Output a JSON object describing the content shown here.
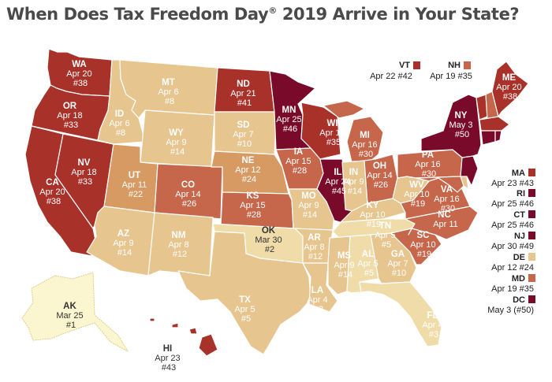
{
  "title": {
    "pre": "When Does Tax Freedom Day",
    "sup": "®",
    "post": " 2019 Arrive in Your State?"
  },
  "colors": {
    "darkest": "#7a0a2a",
    "dark": "#a8322a",
    "medium": "#c6664a",
    "mediumlight": "#d79a63",
    "light": "#e7c58e",
    "lighter": "#f0dca8",
    "lightest": "#fbf6cf"
  },
  "states": {
    "WA": {
      "name": "WA",
      "date": "Apr 20",
      "rank": "#38"
    },
    "OR": {
      "name": "OR",
      "date": "Apr 18",
      "rank": "#33"
    },
    "CA": {
      "name": "CA",
      "date": "Apr 20",
      "rank": "#38"
    },
    "NV": {
      "name": "NV",
      "date": "Apr 18",
      "rank": "#33"
    },
    "ID": {
      "name": "ID",
      "date": "Apr 6",
      "rank": "#8"
    },
    "MT": {
      "name": "MT",
      "date": "Apr 6",
      "rank": "#8"
    },
    "WY": {
      "name": "WY",
      "date": "Apr 9",
      "rank": "#14"
    },
    "UT": {
      "name": "UT",
      "date": "Apr 11",
      "rank": "#22"
    },
    "AZ": {
      "name": "AZ",
      "date": "Apr 9",
      "rank": "#14"
    },
    "CO": {
      "name": "CO",
      "date": "Apr 14",
      "rank": "#26"
    },
    "NM": {
      "name": "NM",
      "date": "Apr 8",
      "rank": "#12"
    },
    "ND": {
      "name": "ND",
      "date": "Apr 21",
      "rank": "#41"
    },
    "SD": {
      "name": "SD",
      "date": "Apr 7",
      "rank": "#10"
    },
    "NE": {
      "name": "NE",
      "date": "Apr 12",
      "rank": "#24"
    },
    "KS": {
      "name": "KS",
      "date": "Apr 15",
      "rank": "#28"
    },
    "OK": {
      "name": "OK",
      "date": "Mar 30",
      "rank": "#2"
    },
    "TX": {
      "name": "TX",
      "date": "Apr 5",
      "rank": "#5"
    },
    "MN": {
      "name": "MN",
      "date": "Apr 25",
      "rank": "#46"
    },
    "IA": {
      "name": "IA",
      "date": "Apr 15",
      "rank": "#28"
    },
    "MO": {
      "name": "MO",
      "date": "Apr 9",
      "rank": "#14"
    },
    "AR": {
      "name": "AR",
      "date": "Apr 8",
      "rank": "#12"
    },
    "LA": {
      "name": "LA",
      "date": "Apr 4",
      "rank": "#3"
    },
    "WI": {
      "name": "WI",
      "date": "Apr 19",
      "rank": "#35"
    },
    "IL": {
      "name": "IL",
      "date": "Apr 24",
      "rank": "#45"
    },
    "MI": {
      "name": "MI",
      "date": "Apr 16",
      "rank": "#30"
    },
    "IN": {
      "name": "IN",
      "date": "Apr 9",
      "rank": "#14"
    },
    "OH": {
      "name": "OH",
      "date": "Apr 14",
      "rank": "#26"
    },
    "KY": {
      "name": "KY",
      "date": "Apr 10",
      "rank": "#19"
    },
    "TN": {
      "name": "TN",
      "date": "Apr 5",
      "rank": "#5"
    },
    "MS": {
      "name": "MS",
      "date": "Apr 9",
      "rank": "#14"
    },
    "AL": {
      "name": "AL",
      "date": "Apr 5",
      "rank": "#5"
    },
    "GA": {
      "name": "GA",
      "date": "Apr 7",
      "rank": "#10"
    },
    "FL": {
      "name": "FL",
      "date": "Apr 4",
      "rank": "#3"
    },
    "SC": {
      "name": "SC",
      "date": "Apr 10",
      "rank": "#19"
    },
    "NC": {
      "name": "NC",
      "date": "Apr 11",
      "rank": "#22"
    },
    "VA": {
      "name": "VA",
      "date": "Apr 16",
      "rank": "#30"
    },
    "WV": {
      "name": "WV",
      "date": "Apr 10",
      "rank": "#19"
    },
    "PA": {
      "name": "PA",
      "date": "Apr 16",
      "rank": "#30"
    },
    "NY": {
      "name": "NY",
      "date": "May 3",
      "rank": "#50"
    },
    "ME": {
      "name": "ME",
      "date": "Apr 20",
      "rank": "#38"
    },
    "AK": {
      "name": "AK",
      "date": "Mar 25",
      "rank": "#1"
    },
    "HI": {
      "name": "HI",
      "date": "Apr 23",
      "rank": "#43"
    }
  },
  "callouts": {
    "VT": {
      "name": "VT",
      "text": "Apr 22 #42"
    },
    "NH": {
      "name": "NH",
      "text": "Apr 19 #35"
    },
    "MA": {
      "name": "MA",
      "text": "Apr 23 #43"
    },
    "RI": {
      "name": "RI",
      "text": "Apr 25 #46"
    },
    "CT": {
      "name": "CT",
      "text": "Apr 25 #46"
    },
    "NJ": {
      "name": "NJ",
      "text": "Apr 30 #49"
    },
    "DE": {
      "name": "DE",
      "text": "Apr 12 #24"
    },
    "MD": {
      "name": "MD",
      "text": "Apr 19 #35"
    },
    "DC": {
      "name": "DC",
      "text": "May 3 (#50)"
    }
  }
}
